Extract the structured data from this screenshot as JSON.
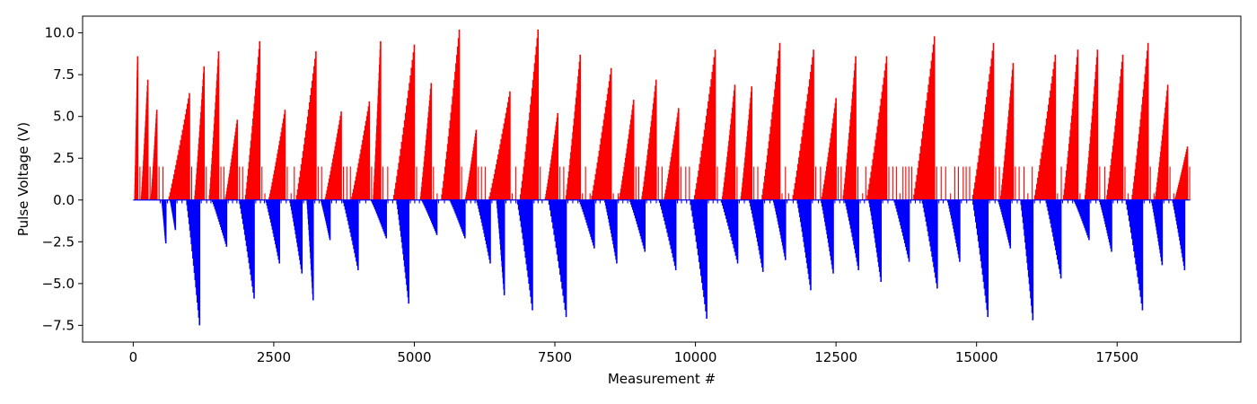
{
  "chart_data": {
    "type": "bar",
    "title": "",
    "xlabel": "Measurement #",
    "ylabel": "Pulse Voltage (V)",
    "xlim": [
      -900,
      19700
    ],
    "ylim": [
      -8.5,
      11.0
    ],
    "xticks": [
      0,
      2500,
      5000,
      7500,
      10000,
      12500,
      15000,
      17500
    ],
    "xtick_labels": [
      "0",
      "2500",
      "5000",
      "7500",
      "10000",
      "12500",
      "15000",
      "17500"
    ],
    "yticks": [
      -7.5,
      -5.0,
      -2.5,
      0.0,
      2.5,
      5.0,
      7.5,
      10.0
    ],
    "ytick_labels": [
      "−7.5",
      "−5.0",
      "−2.5",
      "0.0",
      "2.5",
      "5.0",
      "7.5",
      "10.0"
    ],
    "grid": false,
    "series": [
      {
        "color": "#ff0000",
        "peaks": [
          [
            80,
            8.6
          ],
          [
            260,
            7.2
          ],
          [
            420,
            5.4
          ],
          [
            1000,
            6.4
          ],
          [
            1260,
            8.0
          ],
          [
            1520,
            8.9
          ],
          [
            1850,
            4.8
          ],
          [
            2250,
            9.5
          ],
          [
            2700,
            5.4
          ],
          [
            3250,
            8.9
          ],
          [
            3700,
            5.3
          ],
          [
            4200,
            5.9
          ],
          [
            4400,
            9.5
          ],
          [
            5000,
            9.3
          ],
          [
            5300,
            7.0
          ],
          [
            5800,
            10.2
          ],
          [
            6100,
            4.2
          ],
          [
            6700,
            6.5
          ],
          [
            7200,
            10.2
          ],
          [
            7550,
            5.2
          ],
          [
            7950,
            8.7
          ],
          [
            8500,
            7.9
          ],
          [
            8900,
            6.0
          ],
          [
            9300,
            7.2
          ],
          [
            9700,
            5.5
          ],
          [
            10350,
            9.0
          ],
          [
            10700,
            6.9
          ],
          [
            11000,
            6.8
          ],
          [
            11500,
            9.4
          ],
          [
            12100,
            9.0
          ],
          [
            12500,
            6.1
          ],
          [
            12850,
            8.6
          ],
          [
            13400,
            8.6
          ],
          [
            14250,
            9.8
          ],
          [
            15300,
            9.4
          ],
          [
            15650,
            8.2
          ],
          [
            16400,
            8.7
          ],
          [
            16800,
            9.0
          ],
          [
            17150,
            9.0
          ],
          [
            17600,
            8.7
          ],
          [
            18050,
            9.4
          ],
          [
            18400,
            6.9
          ],
          [
            18750,
            3.2
          ]
        ]
      },
      {
        "color": "#0000ff",
        "troughs": [
          [
            580,
            -2.6
          ],
          [
            750,
            -1.8
          ],
          [
            1180,
            -7.5
          ],
          [
            1660,
            -2.8
          ],
          [
            2150,
            -5.9
          ],
          [
            2600,
            -3.8
          ],
          [
            3000,
            -4.4
          ],
          [
            3200,
            -6.0
          ],
          [
            3500,
            -2.4
          ],
          [
            4000,
            -4.2
          ],
          [
            4500,
            -2.3
          ],
          [
            4900,
            -6.2
          ],
          [
            5400,
            -2.1
          ],
          [
            5900,
            -2.3
          ],
          [
            6350,
            -3.8
          ],
          [
            6600,
            -5.7
          ],
          [
            7100,
            -6.6
          ],
          [
            7700,
            -7.0
          ],
          [
            8200,
            -2.9
          ],
          [
            8600,
            -3.8
          ],
          [
            9100,
            -3.1
          ],
          [
            9650,
            -4.2
          ],
          [
            10200,
            -7.1
          ],
          [
            10750,
            -3.8
          ],
          [
            11200,
            -4.3
          ],
          [
            11600,
            -3.6
          ],
          [
            12050,
            -5.4
          ],
          [
            12450,
            -4.4
          ],
          [
            12900,
            -4.2
          ],
          [
            13300,
            -4.9
          ],
          [
            13800,
            -3.7
          ],
          [
            14300,
            -5.3
          ],
          [
            14700,
            -3.7
          ],
          [
            15200,
            -7.0
          ],
          [
            15600,
            -2.9
          ],
          [
            16000,
            -7.2
          ],
          [
            16500,
            -4.7
          ],
          [
            17000,
            -2.4
          ],
          [
            17400,
            -3.1
          ],
          [
            17950,
            -6.6
          ],
          [
            18300,
            -3.9
          ],
          [
            18700,
            -4.2
          ]
        ]
      }
    ]
  }
}
